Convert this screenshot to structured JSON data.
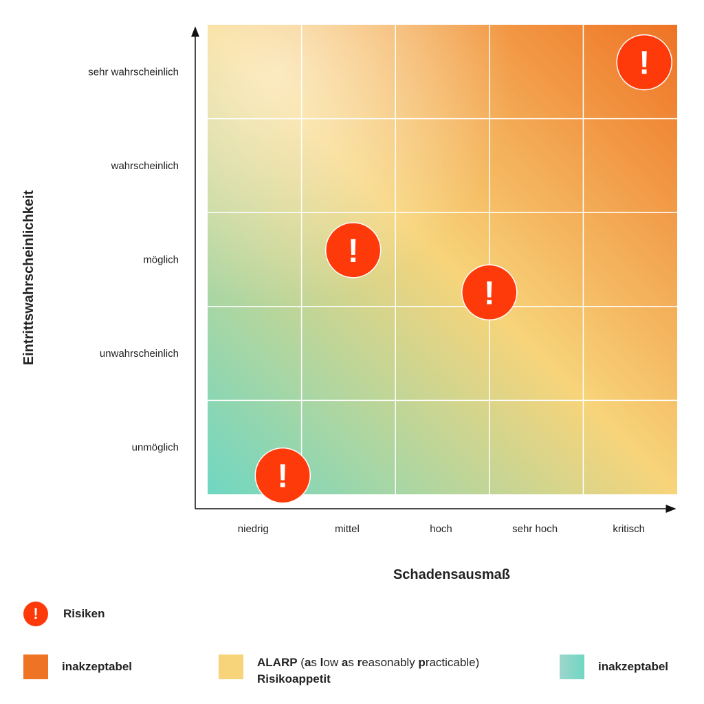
{
  "colors": {
    "unacceptable_high": "#EE7324",
    "alarp": "#F7D47A",
    "low": "#6FD7C2",
    "risk_marker": "#FF3A0A",
    "grid_line": "#ffffff",
    "axis": "#111111"
  },
  "chart_data": {
    "type": "heatmap",
    "xlabel": "Schadensausmaß",
    "ylabel": "Eintrittswahrscheinlichkeit",
    "x_categories": [
      "niedrig",
      "mittel",
      "hoch",
      "sehr hoch",
      "kritisch"
    ],
    "y_categories": [
      "unmöglich",
      "unwahrscheinlich",
      "möglich",
      "wahrscheinlich",
      "sehr wahrscheinlich"
    ],
    "grid": true,
    "risks": [
      {
        "x": 0.8,
        "y": 0.2,
        "symbol": "!"
      },
      {
        "x": 1.55,
        "y": 2.6,
        "symbol": "!"
      },
      {
        "x": 3.0,
        "y": 2.15,
        "symbol": "!"
      },
      {
        "x": 4.65,
        "y": 4.6,
        "symbol": "!"
      }
    ]
  },
  "legend": {
    "risk_label": "Risiken",
    "risk_symbol": "!",
    "items": [
      {
        "label": "inakzeptabel",
        "color": "#EE7324"
      },
      {
        "label_parts": [
          {
            "text": "ALARP",
            "bold": true
          },
          {
            "text": " (",
            "bold": false
          },
          {
            "text": "a",
            "bold": true
          },
          {
            "text": "s ",
            "bold": false
          },
          {
            "text": "l",
            "bold": true
          },
          {
            "text": "ow ",
            "bold": false
          },
          {
            "text": "a",
            "bold": true
          },
          {
            "text": "s ",
            "bold": false
          },
          {
            "text": "r",
            "bold": true
          },
          {
            "text": "easonably ",
            "bold": false
          },
          {
            "text": "p",
            "bold": true
          },
          {
            "text": "racticable)",
            "bold": false
          }
        ],
        "sublabel": "Risikoappetit",
        "color": "#F7D47A"
      },
      {
        "label": "inakzeptabel",
        "color": "#6FD7C2"
      }
    ]
  }
}
